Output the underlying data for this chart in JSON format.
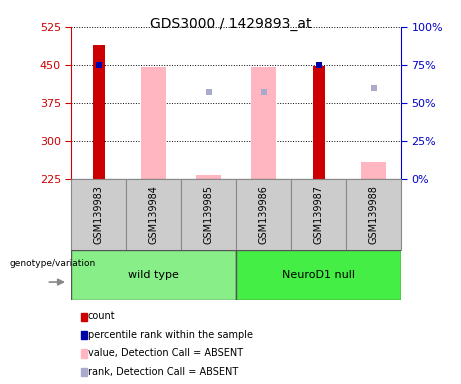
{
  "title": "GDS3000 / 1429893_at",
  "samples": [
    "GSM139983",
    "GSM139984",
    "GSM139985",
    "GSM139986",
    "GSM139987",
    "GSM139988"
  ],
  "ylim_left": [
    225,
    525
  ],
  "ylim_right": [
    0,
    100
  ],
  "yticks_left": [
    225,
    300,
    375,
    450,
    525
  ],
  "yticks_right": [
    0,
    25,
    50,
    75,
    100
  ],
  "red_bars": {
    "GSM139983": 490,
    "GSM139987": 448
  },
  "blue_squares_pct": {
    "GSM139983": 75,
    "GSM139987": 75
  },
  "pink_bars": {
    "GSM139984": [
      225,
      445
    ],
    "GSM139985": [
      225,
      232
    ],
    "GSM139986": [
      225,
      445
    ],
    "GSM139988": [
      225,
      258
    ]
  },
  "lightblue_squares_pct": {
    "GSM139985": 57,
    "GSM139986": 57,
    "GSM139988": 60
  },
  "red_color": "#CC0000",
  "pink_color": "#FFB6C1",
  "blue_color": "#0000AA",
  "lightblue_color": "#AAAACC",
  "group1_color": "#99EE99",
  "group2_color": "#55EE55",
  "gray_cell_color": "#CCCCCC",
  "label_color_left": "#CC0000",
  "label_color_right": "#0000CC",
  "legend_items": [
    {
      "label": "count",
      "color": "#CC0000"
    },
    {
      "label": "percentile rank within the sample",
      "color": "#0000AA"
    },
    {
      "label": "value, Detection Call = ABSENT",
      "color": "#FFB6C1"
    },
    {
      "label": "rank, Detection Call = ABSENT",
      "color": "#AAAACC"
    }
  ],
  "genotype_label": "genotype/variation",
  "group_labels": [
    "wild type",
    "NeuroD1 null"
  ]
}
